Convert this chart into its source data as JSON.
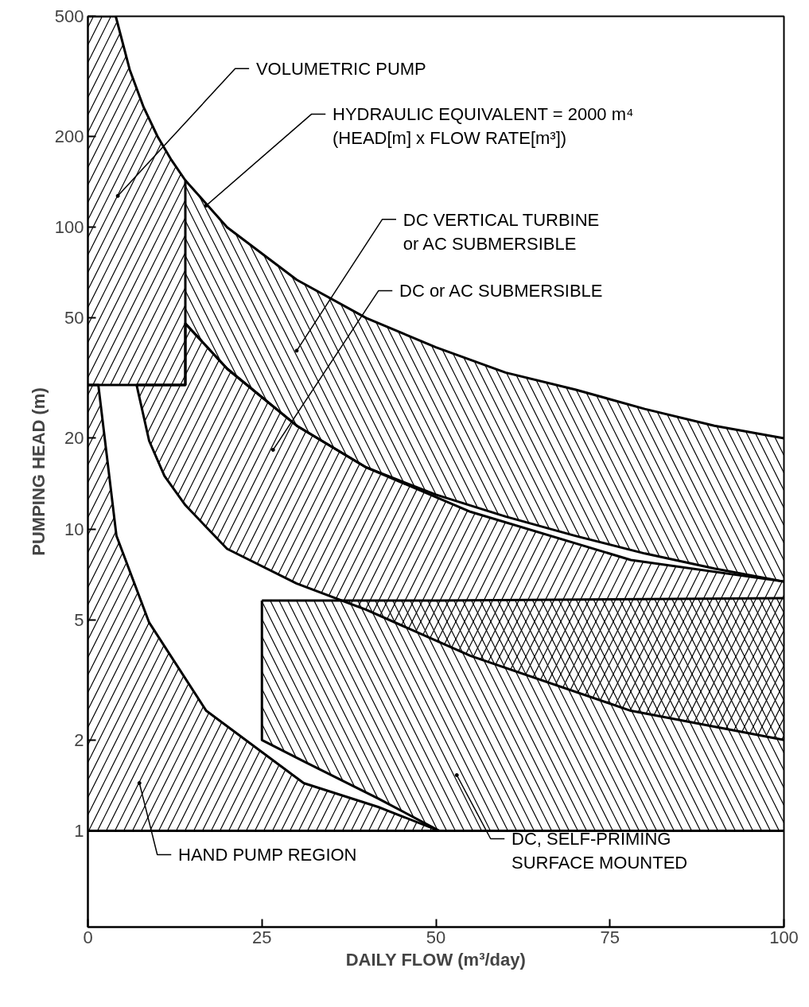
{
  "chart_data": {
    "type": "area",
    "xlabel": "DAILY FLOW (m³/day)",
    "ylabel": "PUMPING HEAD (m)",
    "log": "y",
    "grid": false,
    "xlim": [
      0,
      100
    ],
    "ylim": [
      0.48,
      500
    ],
    "xticks": [
      0,
      25,
      50,
      75,
      100
    ],
    "yticks": [
      1,
      2,
      5,
      10,
      20,
      50,
      100,
      200,
      500
    ],
    "series": [
      {
        "color": "#000000",
        "x": [
          0,
          4,
          6,
          8,
          10,
          12,
          14,
          14
        ],
        "values": [
          500,
          500,
          333,
          250,
          200,
          167,
          143,
          30
        ]
      },
      {
        "type": "line",
        "color": "#000000",
        "x": [
          0,
          14
        ],
        "values": [
          30,
          30
        ]
      },
      {
        "color": "#000000",
        "x": [
          14,
          20,
          30,
          40,
          50,
          60,
          70,
          80,
          90,
          100
        ],
        "values": [
          143,
          100,
          67,
          50,
          40,
          33,
          29,
          25,
          22,
          20
        ]
      },
      {
        "type": "line",
        "color": "#000000",
        "x": [
          14,
          20,
          30,
          40,
          50,
          60,
          70,
          80,
          90,
          100
        ],
        "values": [
          48,
          34,
          22,
          16,
          13,
          11,
          9.5,
          8.3,
          7.4,
          6.7
        ]
      },
      {
        "color": "#000000",
        "x": [
          7,
          8.8,
          11,
          14,
          14,
          20,
          30,
          40,
          55,
          78,
          100
        ],
        "values": [
          30,
          30,
          30,
          30,
          48,
          34,
          22,
          16,
          11.4,
          7.9,
          6.7
        ]
      },
      {
        "type": "line",
        "color": "#000000",
        "x": [
          7,
          8.8,
          11,
          14,
          20,
          30,
          40,
          55,
          78,
          100
        ],
        "values": [
          30,
          19.6,
          15,
          12,
          8.6,
          6.6,
          5.4,
          3.8,
          2.5,
          2.0
        ]
      },
      {
        "color": "#000000",
        "x": [
          25,
          31,
          41.7,
          50.5,
          75,
          100
        ],
        "values": [
          5.8,
          5.8,
          5.8,
          5.8,
          5.85,
          5.9
        ]
      },
      {
        "type": "line",
        "color": "#000000",
        "x": [
          25,
          25,
          31,
          41.7,
          50.5,
          100
        ],
        "values": [
          5.8,
          2.0,
          1.7,
          1.28,
          1,
          1
        ]
      },
      {
        "color": "#000000",
        "x": [
          0,
          1.5,
          4.1,
          8.8,
          17,
          31,
          41.7,
          50.5
        ],
        "values": [
          30,
          30,
          9.5,
          4.9,
          2.5,
          1.44,
          1.2,
          1
        ]
      },
      {
        "type": "line",
        "color": "#000000",
        "x": [
          0,
          50.5
        ],
        "values": [
          1,
          1
        ]
      }
    ],
    "annotations": [
      {
        "text": "VOLUMETRIC PUMP",
        "x": 4.3,
        "y": 127
      },
      {
        "text": "HYDRAULIC EQUIVALENT = 2000 m⁴\n(HEAD[m] x FLOW RATE[m³])",
        "x": 17,
        "y": 118
      },
      {
        "text": "DC VERTICAL TURBINE\nor  AC SUBMERSIBLE",
        "x": 30,
        "y": 39
      },
      {
        "text": "DC or AC SUBMERSIBLE",
        "x": 26.6,
        "y": 18.3
      },
      {
        "text": "HAND PUMP REGION",
        "x": 7.4,
        "y": 1.44
      },
      {
        "text": "DC, SELF-PRIMING\nSURFACE MOUNTED",
        "x": 53,
        "y": 1.53
      }
    ]
  }
}
